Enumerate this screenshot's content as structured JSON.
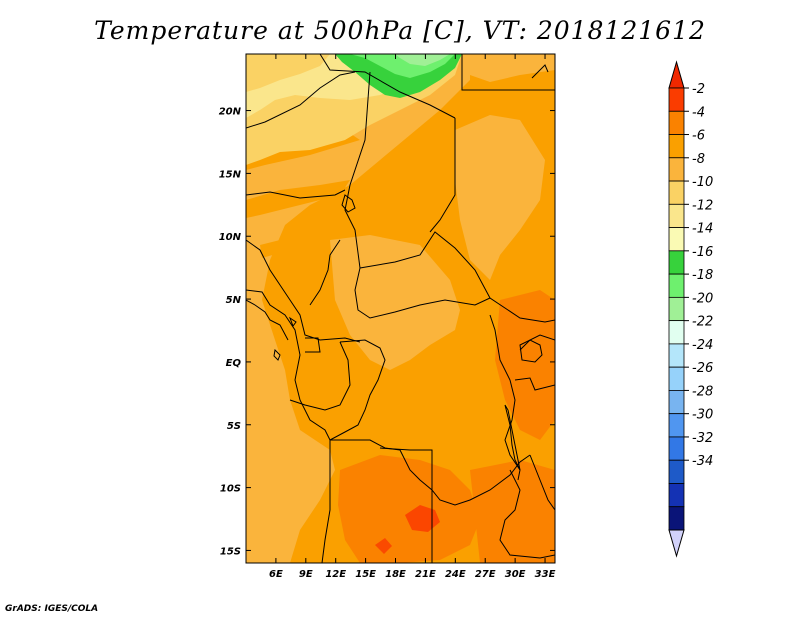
{
  "title": "Temperature at 500hPa [C], VT: 2018121612",
  "credit": "GrADS: IGES/COLA",
  "map": {
    "lon_range": [
      3,
      34
    ],
    "lat_range": [
      -16,
      24.5
    ],
    "lon_ticks": [
      {
        "value": 6,
        "label": "6E"
      },
      {
        "value": 9,
        "label": "9E"
      },
      {
        "value": 12,
        "label": "12E"
      },
      {
        "value": 15,
        "label": "15E"
      },
      {
        "value": 18,
        "label": "18E"
      },
      {
        "value": 21,
        "label": "21E"
      },
      {
        "value": 24,
        "label": "24E"
      },
      {
        "value": 27,
        "label": "27E"
      },
      {
        "value": 30,
        "label": "30E"
      },
      {
        "value": 33,
        "label": "33E"
      }
    ],
    "lat_ticks": [
      {
        "value": 20,
        "label": "20N"
      },
      {
        "value": 15,
        "label": "15N"
      },
      {
        "value": 10,
        "label": "10N"
      },
      {
        "value": 5,
        "label": "5N"
      },
      {
        "value": 0,
        "label": "EQ"
      },
      {
        "value": -5,
        "label": "5S"
      },
      {
        "value": -10,
        "label": "10S"
      },
      {
        "value": -15,
        "label": "15S"
      }
    ]
  },
  "colorbar": {
    "levels": [
      {
        "label": "-2",
        "color": "#fa3c00"
      },
      {
        "label": "-4",
        "color": "#fa8200"
      },
      {
        "label": "-6",
        "color": "#faa000"
      },
      {
        "label": "-8",
        "color": "#fab43c"
      },
      {
        "label": "-10",
        "color": "#fad264"
      },
      {
        "label": "-12",
        "color": "#fae68c"
      },
      {
        "label": "-14",
        "color": "#fafab4"
      },
      {
        "label": "-16",
        "color": "#37d23c"
      },
      {
        "label": "-18",
        "color": "#6ef06e"
      },
      {
        "label": "-20",
        "color": "#a0f096"
      },
      {
        "label": "-22",
        "color": "#e1fff0"
      },
      {
        "label": "-24",
        "color": "#b4e6fa"
      },
      {
        "label": "-26",
        "color": "#96d2fa"
      },
      {
        "label": "-28",
        "color": "#78b4f0"
      },
      {
        "label": "-30",
        "color": "#5096f0"
      },
      {
        "label": "-32",
        "color": "#3278e6"
      },
      {
        "label": "-34",
        "color": "#1e5ac8"
      },
      {
        "label": "",
        "color": "#1432b4"
      },
      {
        "label": "",
        "color": "#0a1478"
      }
    ],
    "max_arrow_color": "#f02800",
    "min_arrow_color": "#d2d2fa"
  }
}
